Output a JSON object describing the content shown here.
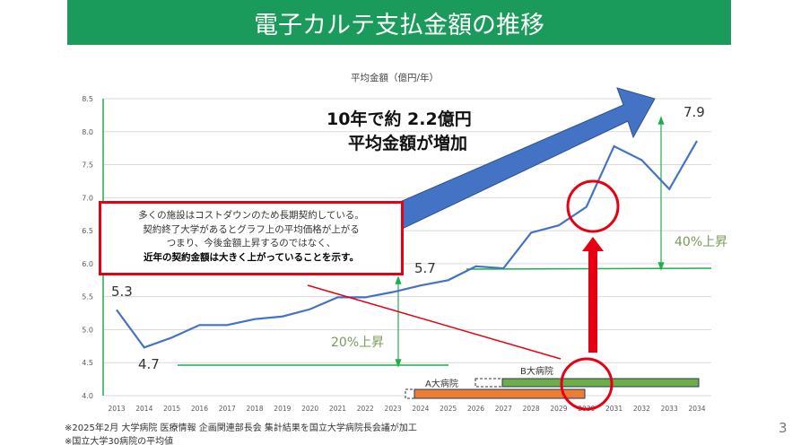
{
  "title": "電子カルテ支払金額の推移",
  "page_number": "3",
  "headline": {
    "line1": "10年で約 2.2億円",
    "line2": "平均金額が増加"
  },
  "note": {
    "line1": "多くの施設はコストダウンのため長期契約している。",
    "line2": "契約終了大学があるとグラフ上の平均価格が上がる",
    "line3": "つまり、今後金額上昇するのではなく、",
    "line4": "近年の契約金額は大きく上がっていることを示す。"
  },
  "annotations": {
    "rise20": "20%上昇",
    "rise40": "40%上昇",
    "label_start": "5.3",
    "label_min": "4.7",
    "label_mid": "5.7",
    "label_end": "7.9",
    "hospital_a": "A大病院",
    "hospital_b": "B大病院"
  },
  "footnotes": [
    "※2025年2月 大学病院 医療情報 企画関連部長会 集計結果を国立大学病院長会議が加工",
    "※国立大学30病院の平均値"
  ],
  "colors": {
    "title_bg": "#1a9a5b",
    "line": "#4472c4",
    "green": "#1fae4b",
    "red": "#e60012",
    "bar_a": "#ed7d31",
    "bar_b": "#70ad47"
  },
  "chart_data": {
    "type": "line",
    "title": "平均金額（億円/年）",
    "xlabel": "",
    "ylabel": "",
    "categories": [
      "2013",
      "2014",
      "2015",
      "2016",
      "2017",
      "2018",
      "2019",
      "2020",
      "2021",
      "2022",
      "2023",
      "2024",
      "2025",
      "2026",
      "2027",
      "2028",
      "2029",
      "2030",
      "2031",
      "2032",
      "2033",
      "2034"
    ],
    "series": [
      {
        "name": "平均金額",
        "values": [
          5.3,
          4.73,
          4.88,
          5.07,
          5.07,
          5.16,
          5.2,
          5.31,
          5.49,
          5.49,
          5.57,
          5.67,
          5.75,
          5.96,
          5.93,
          6.47,
          6.58,
          6.86,
          7.78,
          7.57,
          7.13,
          7.86
        ]
      }
    ],
    "ylim": [
      4.0,
      8.5
    ],
    "yticks": [
      "4.0",
      "4.5",
      "5.0",
      "5.5",
      "6.0",
      "6.5",
      "7.0",
      "7.5",
      "8.0",
      "8.5"
    ],
    "grid": true,
    "contracts": [
      {
        "name": "A大病院",
        "start": 2023.7,
        "end": 2029.9
      },
      {
        "name": "B大病院",
        "start": 2026.7,
        "end": 2034.1
      }
    ]
  }
}
